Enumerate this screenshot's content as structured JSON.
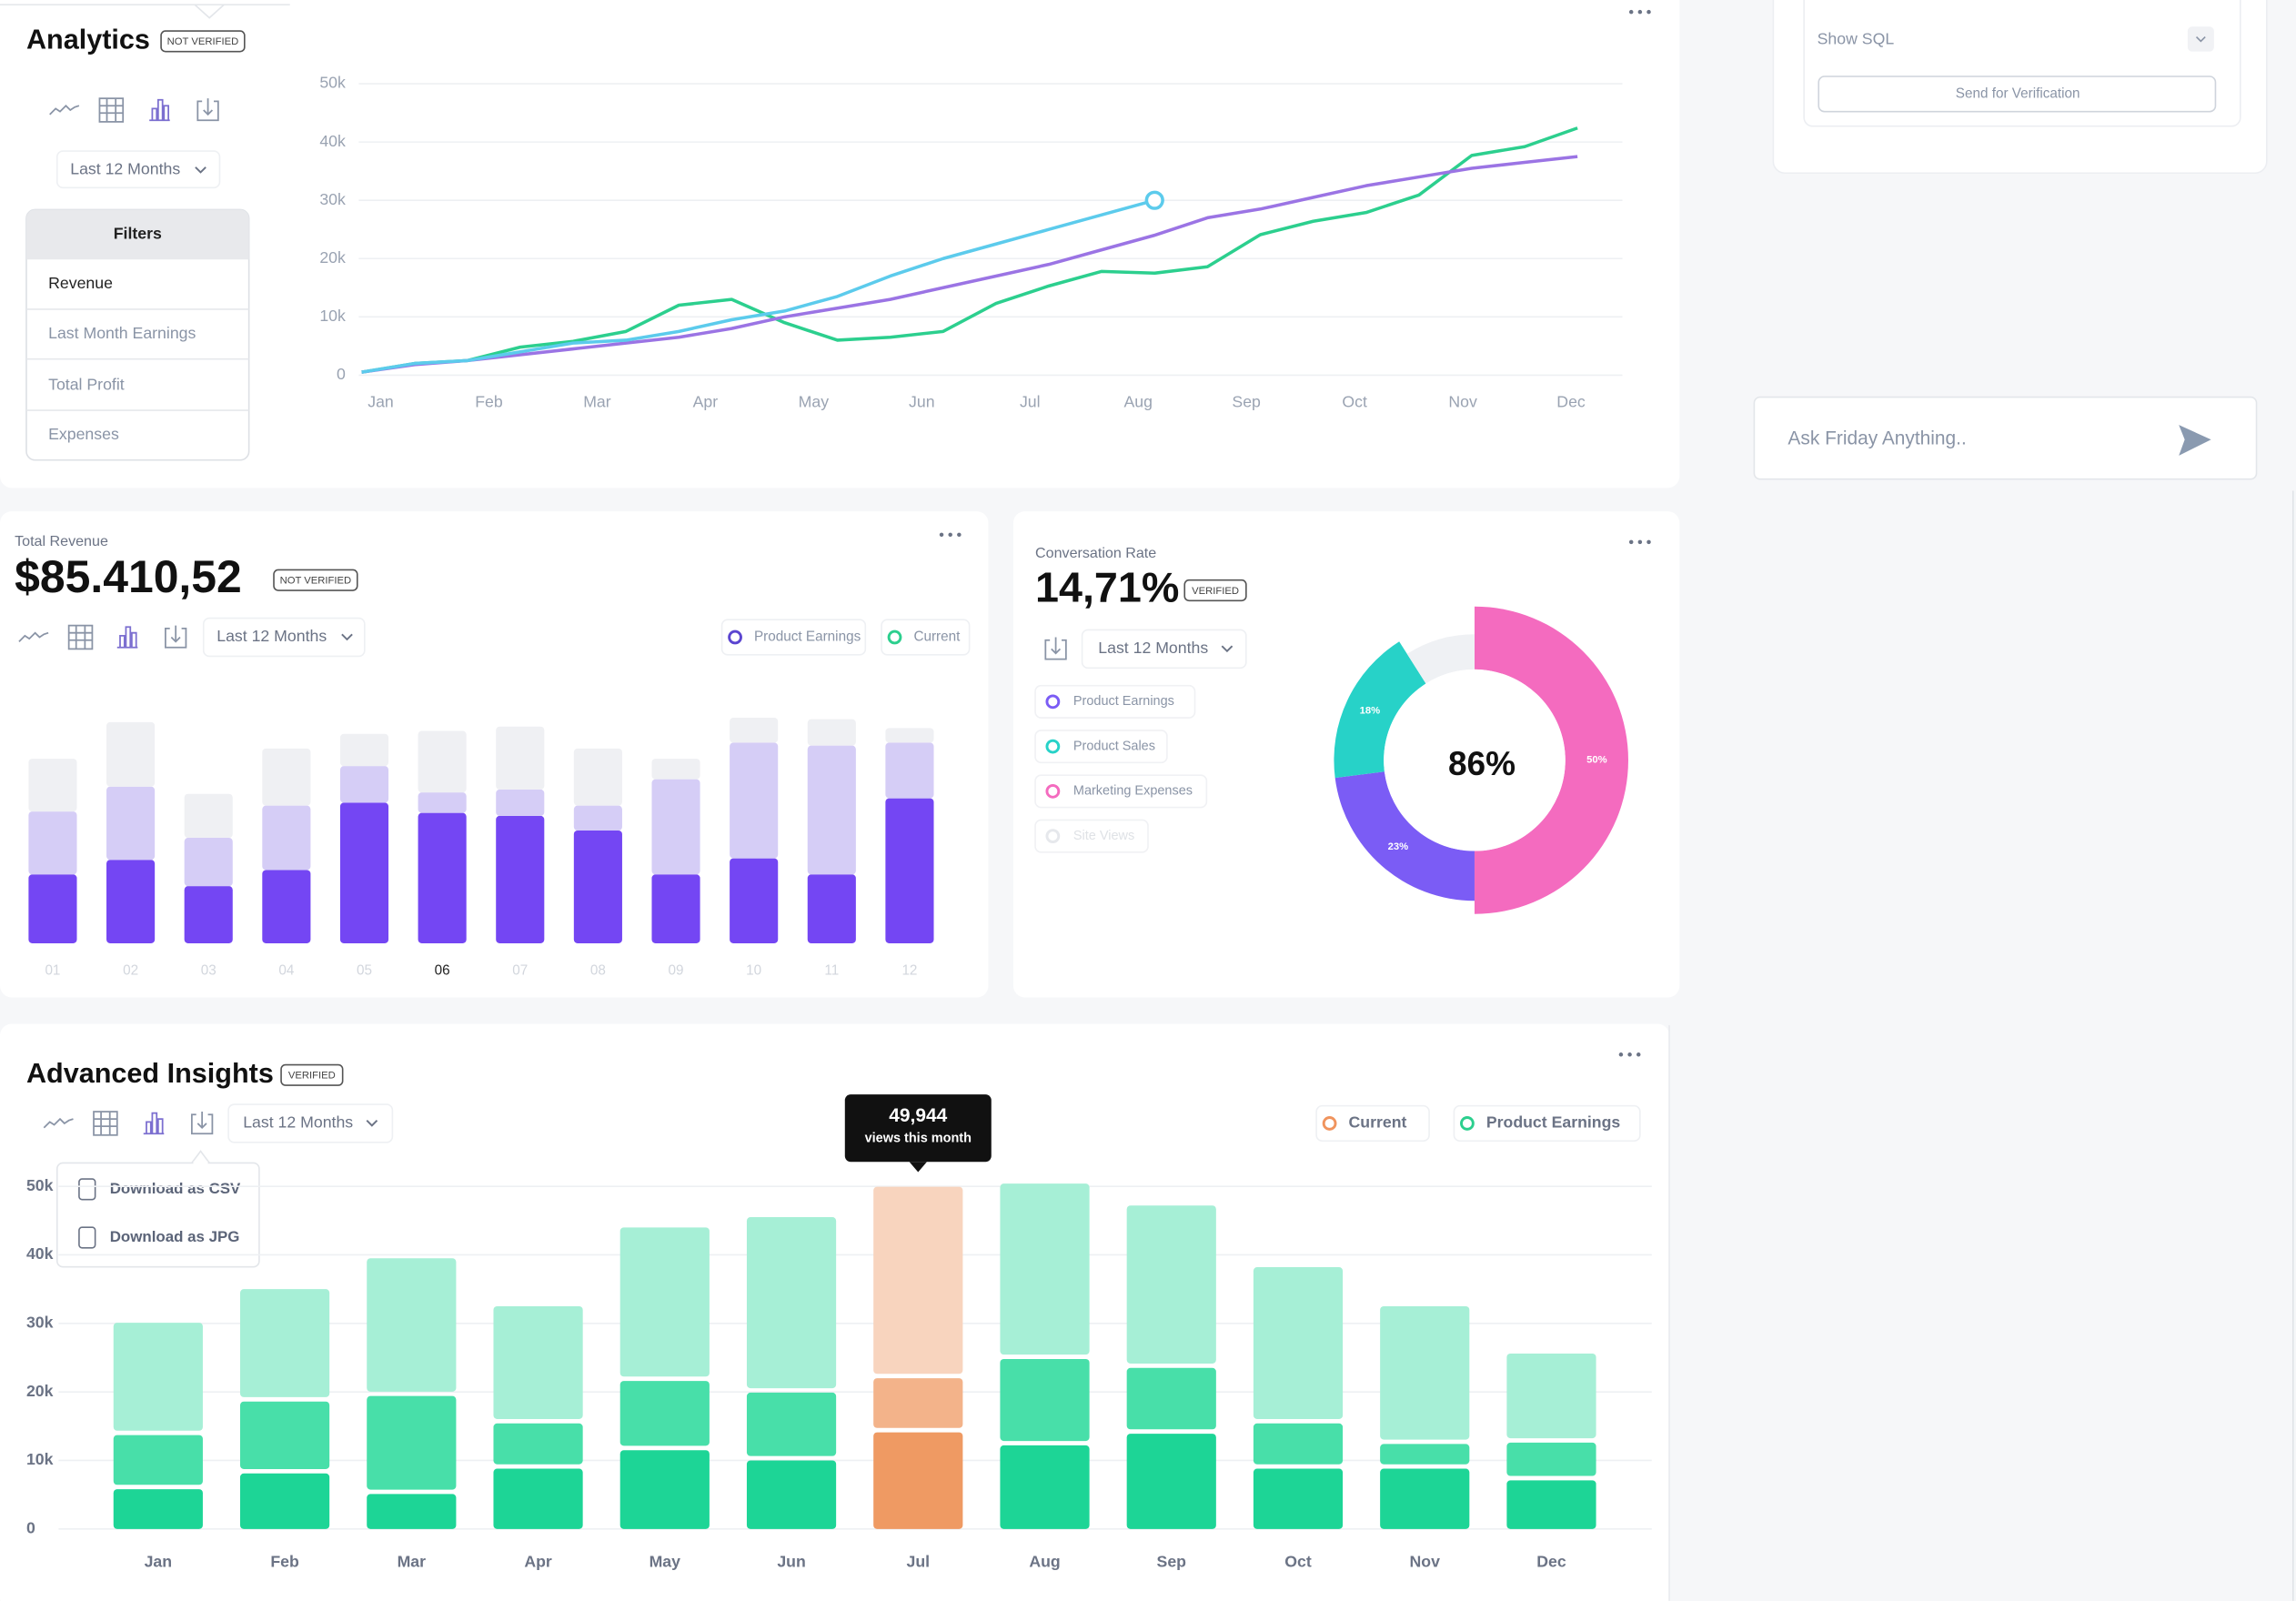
{
  "analytics": {
    "title": "Analytics",
    "badge": "NOT VERIFIED",
    "range": "Last 12 Months",
    "filters": {
      "title": "Filters",
      "items": [
        "Revenue",
        "Last Month Earnings",
        "Total Profit",
        "Expenses"
      ]
    }
  },
  "sql_panel": {
    "show_sql": "Show SQL",
    "send": "Send for Verification"
  },
  "ask": {
    "placeholder": "Ask Friday Anything.."
  },
  "revenue": {
    "label": "Total Revenue",
    "amount": "$85.410,52",
    "badge": "NOT VERIFIED",
    "range": "Last 12 Months"
  },
  "conversion": {
    "label": "Conversation Rate",
    "rate": "14,71%",
    "badge": "VERIFIED",
    "range": "Last 12 Months"
  },
  "insights": {
    "title": "Advanced Insights",
    "badge": "VERIFIED",
    "range": "Last 12 Months",
    "download": [
      "Download as CSV",
      "Download as JPG"
    ]
  },
  "chart_data": [
    {
      "type": "line",
      "categories": [
        "Jan",
        null,
        "Feb",
        null,
        "Mar",
        null,
        "Apr",
        null,
        "May",
        null,
        "Jun",
        null,
        "Jul",
        null,
        "Aug",
        null,
        "Sep",
        null,
        "Oct",
        null,
        "Nov",
        null,
        "Dec",
        null
      ],
      "series": [
        {
          "color": "#2ccf8e",
          "values": [
            500,
            2000,
            2500,
            4800,
            5800,
            7500,
            12000,
            13000,
            9000,
            6000,
            6500,
            7500,
            12300,
            15300,
            17800,
            17500,
            18600,
            24100,
            26400,
            27900,
            30900,
            37700,
            39200,
            42400
          ]
        },
        {
          "color": "#9b74e4",
          "values": [
            500,
            1800,
            2500,
            3500,
            4500,
            5500,
            6500,
            8000,
            10000,
            11500,
            13000,
            15000,
            17000,
            19000,
            21500,
            24000,
            27000,
            28500,
            30500,
            32500,
            34000,
            35500,
            36500,
            37500
          ]
        },
        {
          "color": "#5ccbec",
          "marker_last": true,
          "values": [
            500,
            2000,
            2500,
            4000,
            5500,
            6000,
            7500,
            9500,
            11000,
            13500,
            17000,
            20000,
            22500,
            25000,
            27500,
            30000,
            null,
            null,
            null,
            null,
            null,
            null,
            null,
            null
          ]
        }
      ],
      "ylim": [
        0,
        50000
      ],
      "yticks": [
        0,
        {
          "value": 10000,
          "label": "10k"
        },
        {
          "value": 20000,
          "label": "20k"
        },
        {
          "value": 30000,
          "label": "30k"
        },
        {
          "value": 40000,
          "label": "40k"
        },
        {
          "value": 50000,
          "label": "50k"
        }
      ],
      "grid": true
    },
    {
      "type": "stacked_bar",
      "categories": [
        "01",
        "02",
        "03",
        "04",
        "05",
        "06",
        "07",
        "08",
        "09",
        "10",
        "11",
        "12"
      ],
      "series": [
        {
          "color": "#7446f3",
          "values": [
            47,
            57,
            39,
            50,
            96,
            89,
            87,
            77,
            47,
            58,
            47,
            99
          ]
        },
        {
          "color": "#d5cdf6",
          "values": [
            43,
            50,
            33,
            44,
            25,
            14,
            18,
            17,
            65,
            79,
            88,
            38
          ]
        },
        {
          "color": "#eff0f3",
          "values": [
            36,
            44,
            30,
            39,
            22,
            42,
            43,
            39,
            14,
            17,
            18,
            10
          ]
        }
      ],
      "ylim": [
        0,
        160
      ],
      "highlight": 5,
      "legend": [
        {
          "name": "Product Earnings",
          "color": "#5b45d0"
        },
        {
          "name": "Current",
          "color": "#2ccf8e"
        }
      ]
    },
    {
      "type": "donut",
      "categories": [
        "Product Earnings",
        "Product Sales",
        "Marketing Expenses",
        "Site Views"
      ],
      "values": [
        23,
        18,
        50,
        9
      ],
      "value_labels": [
        "23%",
        "18%",
        "50%",
        null
      ],
      "colors": [
        "#7b5cf5",
        "#27d2c8",
        "#f46bbf",
        "#eff1f4"
      ],
      "center_label": "86%"
    },
    {
      "type": "stacked_bar",
      "categories": [
        "Jan",
        "Feb",
        "Mar",
        "Apr",
        "May",
        "Jun",
        "Jul",
        "Aug",
        "Sep",
        "Oct",
        "Nov",
        "Dec"
      ],
      "series": [
        {
          "color": "#1dd596",
          "highlight_color": "#ef9a63",
          "values": [
            5800,
            8100,
            5100,
            8800,
            11500,
            10000,
            14100,
            12200,
            13900,
            8800,
            8800,
            7100
          ]
        },
        {
          "color": "#48dfa9",
          "highlight_color": "#f3b38a",
          "values": [
            7900,
            10500,
            14300,
            6600,
            10100,
            9900,
            7900,
            12600,
            9600,
            6600,
            3600,
            5500
          ]
        },
        {
          "color": "#a6efd6",
          "highlight_color": "#f8d4be",
          "values": [
            16400,
            16400,
            20100,
            17100,
            22400,
            25600,
            27944,
            25600,
            23700,
            22800,
            20100,
            13000
          ]
        }
      ],
      "ylim": [
        0,
        50000
      ],
      "yticks": [
        0,
        {
          "value": 10000,
          "label": "10k"
        },
        {
          "value": 20000,
          "label": "20k"
        },
        {
          "value": 30000,
          "label": "30k"
        },
        {
          "value": 40000,
          "label": "40k"
        },
        {
          "value": 50000,
          "label": "50k"
        }
      ],
      "grid": true,
      "highlight": 6,
      "tooltip": {
        "label": "49,944",
        "text": "views this month"
      },
      "legend": [
        {
          "name": "Current",
          "color": "#f0945e"
        },
        {
          "name": "Product Earnings",
          "color": "#2ccf8e"
        }
      ]
    }
  ]
}
